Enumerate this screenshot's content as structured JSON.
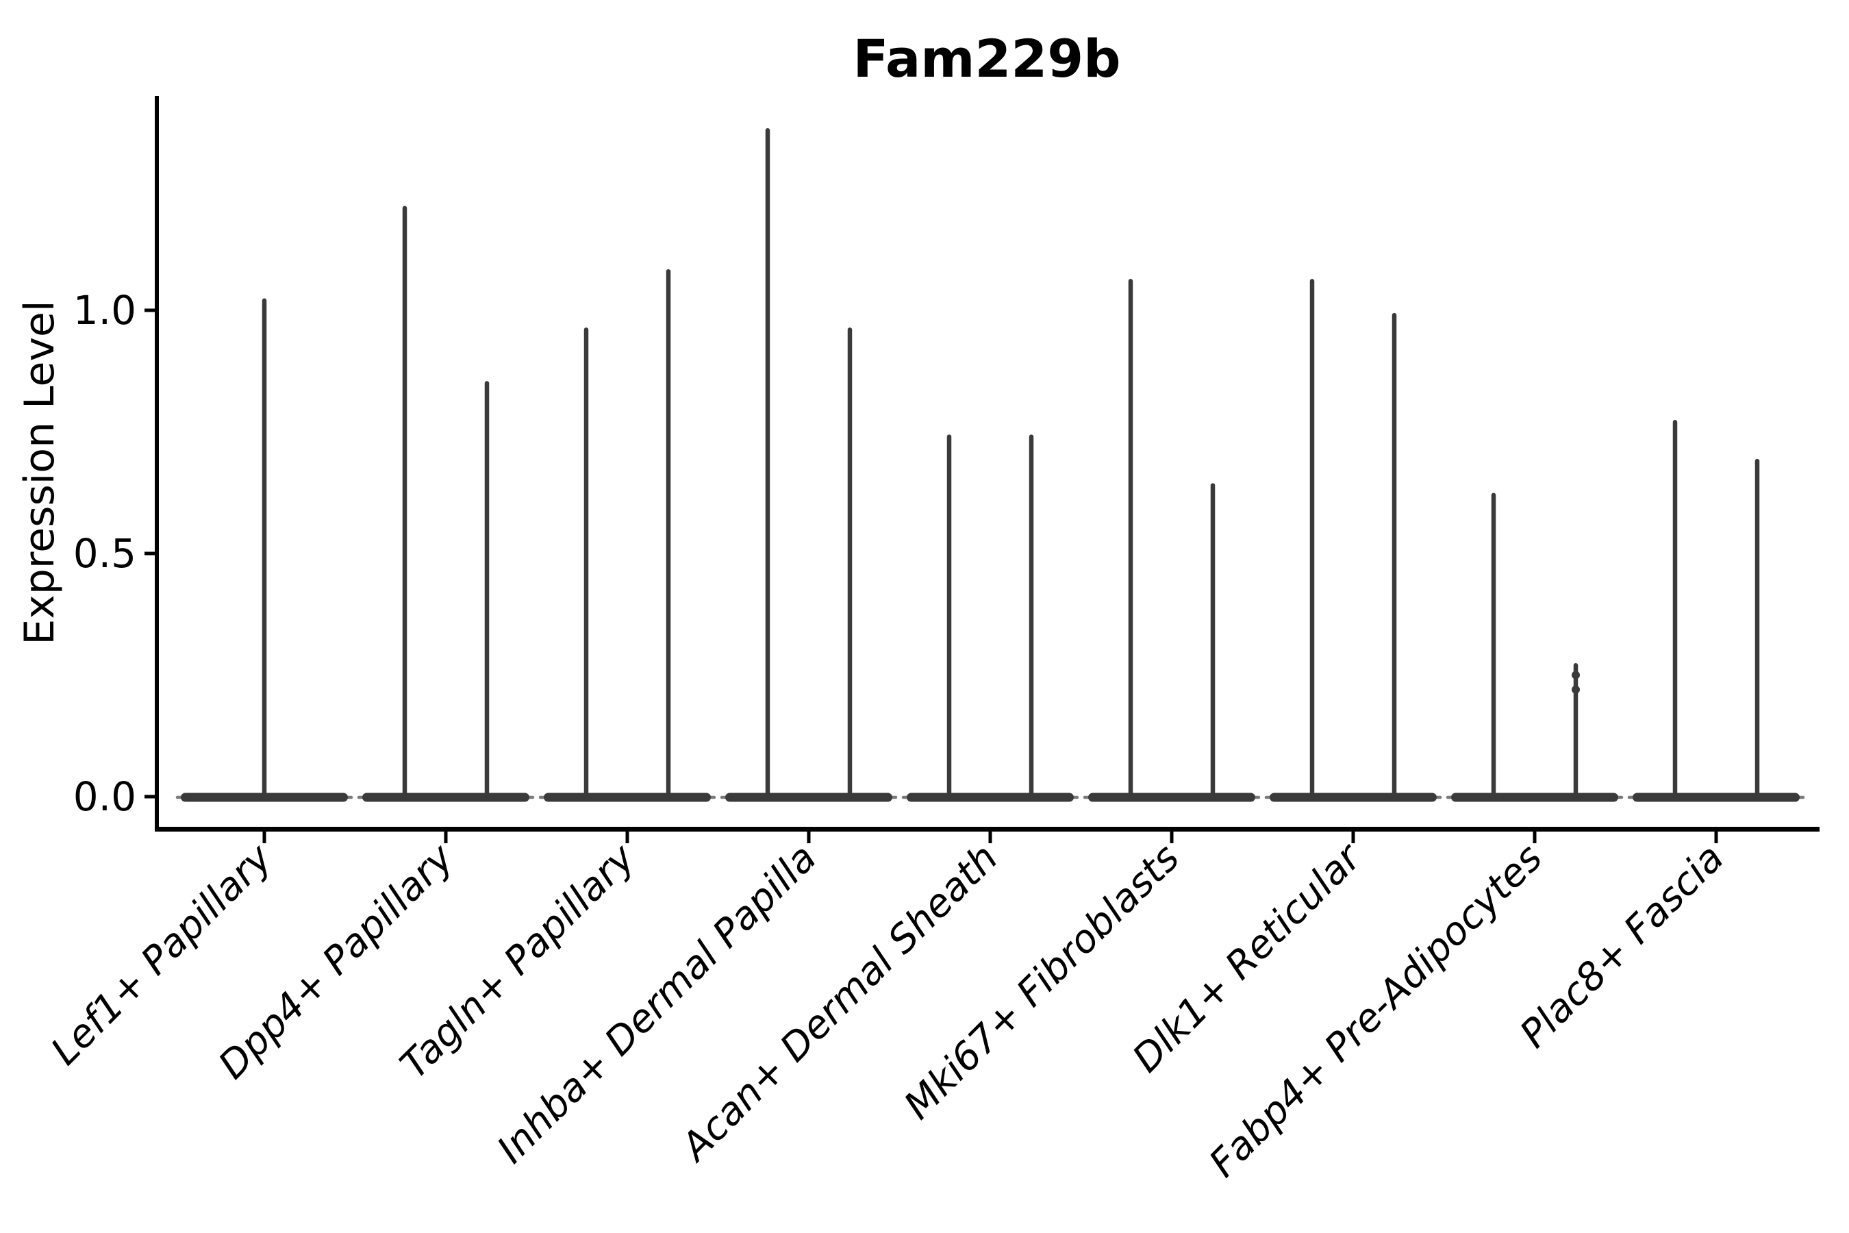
{
  "chart_data": {
    "type": "violin",
    "title": "Fam229b",
    "ylabel": "Expression Level",
    "xlabel": "",
    "grid": false,
    "legend": null,
    "ylim": [
      -0.07,
      1.44
    ],
    "yticks": [
      {
        "value": 0.0,
        "label": "0.0"
      },
      {
        "value": 0.5,
        "label": "0.5"
      },
      {
        "value": 1.0,
        "label": "1.0"
      }
    ],
    "groups": [
      {
        "label": "Lef1+ Papillary",
        "violins": [
          {
            "max": 1.02
          }
        ]
      },
      {
        "label": "Dpp4+ Papillary",
        "violins": [
          {
            "max": 1.21
          },
          {
            "max": 0.85
          }
        ]
      },
      {
        "label": "Tagln+ Papillary",
        "violins": [
          {
            "max": 0.96
          },
          {
            "max": 1.08
          }
        ]
      },
      {
        "label": "Inhba+ Dermal Papilla",
        "violins": [
          {
            "max": 1.37
          },
          {
            "max": 0.96
          }
        ]
      },
      {
        "label": "Acan+ Dermal Sheath",
        "violins": [
          {
            "max": 0.74
          },
          {
            "max": 0.74
          }
        ]
      },
      {
        "label": "Mki67+ Fibroblasts",
        "violins": [
          {
            "max": 1.06
          },
          {
            "max": 0.64
          }
        ]
      },
      {
        "label": "Dlk1+ Reticular",
        "violins": [
          {
            "max": 1.06
          },
          {
            "max": 0.99
          }
        ]
      },
      {
        "label": "Fabp4+ Pre-Adipocytes",
        "violins": [
          {
            "max": 0.62
          },
          {
            "max": 0.27,
            "bumps": [
              0.25,
              0.22
            ]
          }
        ]
      },
      {
        "label": "Plac8+ Fascia",
        "violins": [
          {
            "max": 0.77
          },
          {
            "max": 0.69
          }
        ]
      }
    ],
    "colors": {
      "violin": "#3a3a3a",
      "violin_tip": "#7a7a7a",
      "axis": "#000000",
      "background": "#ffffff"
    }
  }
}
